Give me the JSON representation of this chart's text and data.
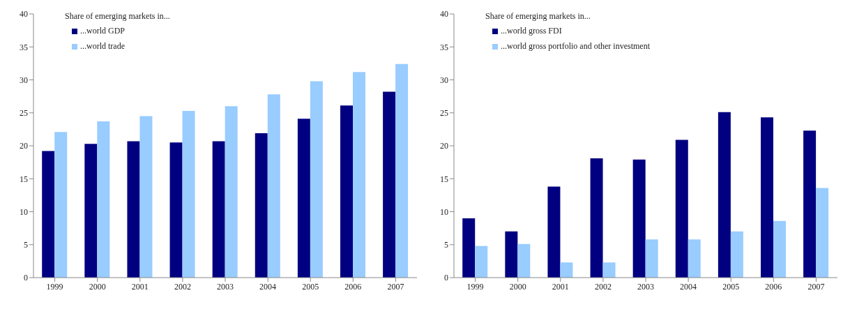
{
  "chart_data": [
    {
      "type": "bar",
      "legend_title": "Share of emerging markets in...",
      "categories": [
        "1999",
        "2000",
        "2001",
        "2002",
        "2003",
        "2004",
        "2005",
        "2006",
        "2007"
      ],
      "series": [
        {
          "name": "...world GDP",
          "color": "#000080",
          "values": [
            19.2,
            20.3,
            20.7,
            20.5,
            20.7,
            21.9,
            24.1,
            26.1,
            28.2
          ]
        },
        {
          "name": "...world trade",
          "color": "#99ccff",
          "values": [
            22.1,
            23.7,
            24.5,
            25.3,
            26.0,
            27.8,
            29.8,
            31.2,
            32.4
          ]
        }
      ],
      "ylim": [
        0,
        40
      ],
      "yticks": [
        0,
        5,
        10,
        15,
        20,
        25,
        30,
        35,
        40
      ],
      "grid": false,
      "legend": "top left"
    },
    {
      "type": "bar",
      "legend_title": "Share of emerging markets in...",
      "categories": [
        "1999",
        "2000",
        "2001",
        "2002",
        "2003",
        "2004",
        "2005",
        "2006",
        "2007"
      ],
      "series": [
        {
          "name": "...world gross FDI",
          "color": "#000080",
          "values": [
            9.0,
            7.0,
            13.8,
            18.1,
            17.9,
            20.9,
            25.1,
            24.3,
            22.3
          ]
        },
        {
          "name": "...world gross portfolio and other investment",
          "color": "#99ccff",
          "values": [
            4.8,
            5.1,
            2.3,
            2.3,
            5.8,
            5.8,
            7.0,
            8.6,
            13.6
          ]
        }
      ],
      "ylim": [
        0,
        40
      ],
      "yticks": [
        0,
        5,
        10,
        15,
        20,
        25,
        30,
        35,
        40
      ],
      "grid": false,
      "legend": "top left"
    }
  ]
}
